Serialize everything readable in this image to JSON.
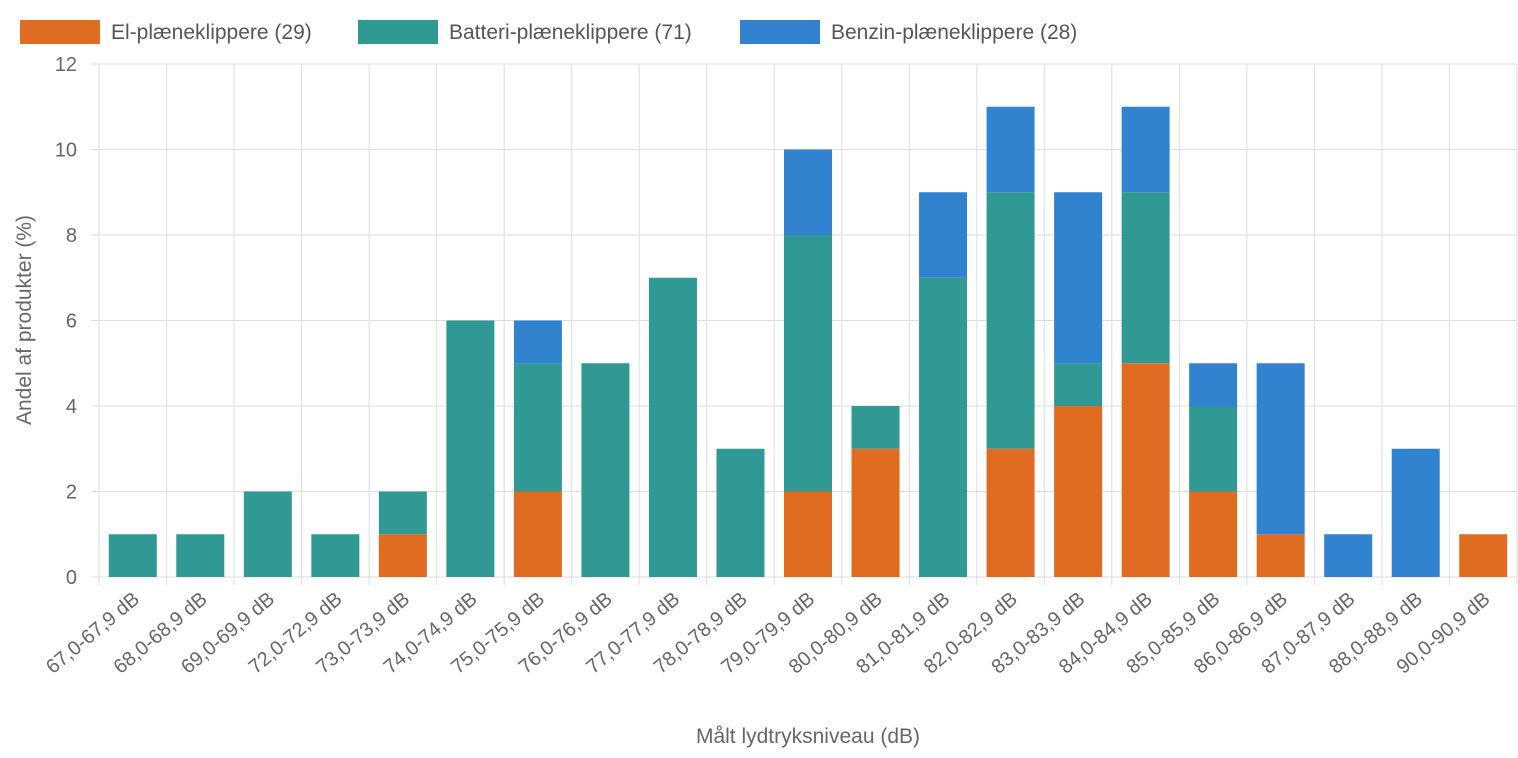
{
  "chart_data": {
    "type": "bar",
    "stacked": true,
    "xlabel": "Målt lydtryksniveau (dB)",
    "ylabel": "Andel af produkter (%)",
    "ylim": [
      0,
      12
    ],
    "yticks": [
      0,
      2,
      4,
      6,
      8,
      10,
      12
    ],
    "grid": true,
    "legend_position": "top-left",
    "categories": [
      "67,0-67,9 dB",
      "68,0-68,9 dB",
      "69,0-69,9 dB",
      "72,0-72,9 dB",
      "73,0-73,9 dB",
      "74,0-74,9 dB",
      "75,0-75,9 dB",
      "76,0-76,9 dB",
      "77,0-77,9 dB",
      "78,0-78,9 dB",
      "79,0-79,9 dB",
      "80,0-80,9 dB",
      "81,0-81,9 dB",
      "82,0-82,9 dB",
      "83,0-83,9 dB",
      "84,0-84,9 dB",
      "85,0-85,9 dB",
      "86,0-86,9 dB",
      "87,0-87,9 dB",
      "88,0-88,9 dB",
      "90,0-90,9 dB"
    ],
    "series": [
      {
        "name": "El-plæneklippere (29)",
        "color": "#e06c22",
        "values": [
          0,
          0,
          0,
          0,
          1,
          0,
          2,
          0,
          0,
          0,
          2,
          3,
          0,
          3,
          4,
          5,
          2,
          1,
          0,
          0,
          1
        ]
      },
      {
        "name": "Batteri-plæneklippere (71)",
        "color": "#319993",
        "values": [
          1,
          1,
          2,
          1,
          1,
          6,
          3,
          5,
          7,
          3,
          6,
          1,
          7,
          6,
          1,
          4,
          2,
          0,
          0,
          0,
          0
        ]
      },
      {
        "name": "Benzin-plæneklippere (28)",
        "color": "#3283cf",
        "values": [
          0,
          0,
          0,
          0,
          0,
          0,
          1,
          0,
          0,
          0,
          2,
          0,
          2,
          2,
          4,
          2,
          1,
          4,
          1,
          3,
          0
        ]
      }
    ]
  }
}
